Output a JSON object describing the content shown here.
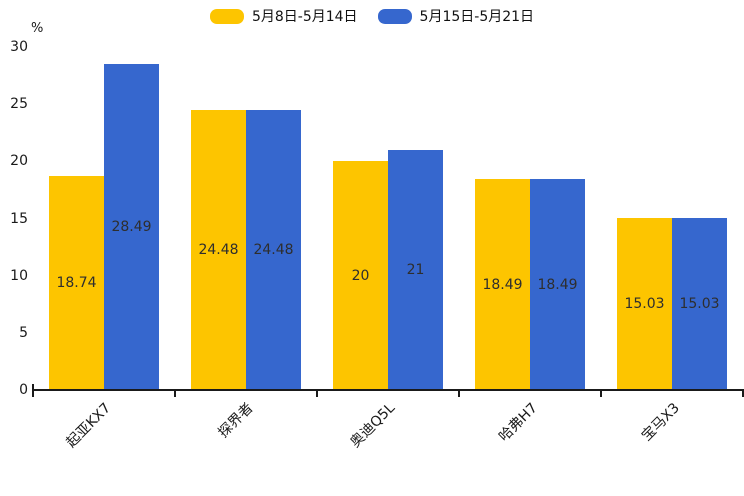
{
  "chart_data": {
    "type": "bar",
    "title": "",
    "xlabel": "",
    "ylabel": "%",
    "categories": [
      "起亚KX7",
      "探界者",
      "奥迪Q5L",
      "哈弗H7",
      "宝马X3"
    ],
    "series": [
      {
        "name": "5月8日-5月14日",
        "color": "#FDC500",
        "values": [
          18.74,
          24.48,
          20,
          18.49,
          15.03
        ]
      },
      {
        "name": "5月15日-5月21日",
        "color": "#3667CE",
        "values": [
          28.49,
          24.48,
          21,
          18.49,
          15.03
        ]
      }
    ],
    "ylim": [
      0,
      30
    ],
    "yticks": [
      0,
      5,
      10,
      15,
      20,
      25,
      30
    ],
    "grid": false,
    "legend_position": "top-center",
    "bar_value_labels_shown": true,
    "colors": {
      "axis": "#1a1a1a",
      "tick_label": "#1a1a1a",
      "value_label": "#2e2e2e",
      "background": "#ffffff"
    }
  }
}
